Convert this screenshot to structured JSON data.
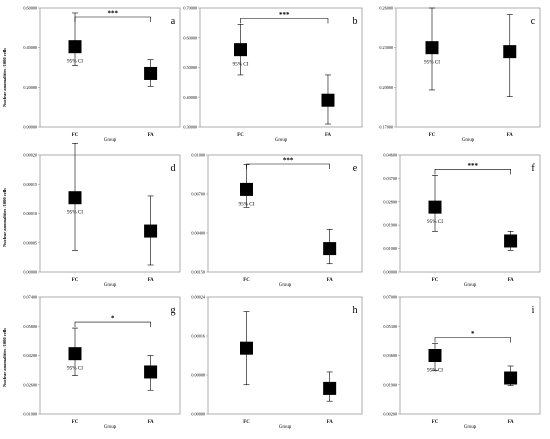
{
  "figure": {
    "background": "#ffffff",
    "marker_color": "#000000",
    "frame_color": "#999999"
  },
  "chart_data": [
    {
      "panel": "a",
      "type": "scatter",
      "ylabel": "Nuclear anomalities /1000 cells",
      "xlabel": "Group",
      "categories": [
        "FC",
        "FA"
      ],
      "ylim": [
        0,
        0.6
      ],
      "yticks": [
        "0.00000",
        "0.20000",
        "0.40000",
        "0.60000"
      ],
      "series": [
        {
          "values": [
            0.405,
            0.27
          ],
          "ci_low": [
            0.31,
            0.205
          ],
          "ci_high": [
            0.575,
            0.34
          ]
        }
      ],
      "significance": "***",
      "ci_label": "95% CI"
    },
    {
      "panel": "b",
      "type": "scatter",
      "ylabel": "",
      "xlabel": "Group",
      "categories": [
        "FC",
        "FA"
      ],
      "ylim": [
        0.3,
        0.7
      ],
      "yticks": [
        "0.30000",
        "0.40000",
        "0.50000",
        "0.60000",
        "0.70000"
      ],
      "series": [
        {
          "values": [
            0.56,
            0.39
          ],
          "ci_low": [
            0.475,
            0.31
          ],
          "ci_high": [
            0.645,
            0.475
          ]
        }
      ],
      "significance": "***",
      "ci_label": "95% CI"
    },
    {
      "panel": "c",
      "type": "scatter",
      "ylabel": "",
      "xlabel": "Group",
      "categories": [
        "FC",
        "FA"
      ],
      "ylim": [
        0.17,
        0.26
      ],
      "yticks": [
        "0.17000",
        "0.20000",
        "0.23000",
        "0.26000"
      ],
      "series": [
        {
          "values": [
            0.23,
            0.227
          ],
          "ci_low": [
            0.198,
            0.193
          ],
          "ci_high": [
            0.26,
            0.255
          ]
        }
      ],
      "significance": "",
      "ci_label": "95% CI"
    },
    {
      "panel": "d",
      "type": "scatter",
      "ylabel": "Nuclear anomalities /1000 cells",
      "xlabel": "Group",
      "categories": [
        "FC",
        "FA"
      ],
      "ylim": [
        0,
        0.0002
      ],
      "yticks": [
        "0.00000",
        "0.00005",
        "0.00010",
        "0.00015",
        "0.00020"
      ],
      "series": [
        {
          "values": [
            0.000127,
            7e-05
          ],
          "ci_low": [
            3.7e-05,
            1.2e-05
          ],
          "ci_high": [
            0.00022,
            0.00013
          ]
        }
      ],
      "significance": "",
      "ci_label": "95% CI"
    },
    {
      "panel": "e",
      "type": "scatter",
      "ylabel": "",
      "xlabel": "Group",
      "categories": [
        "FC",
        "FA"
      ],
      "ylim": [
        0.0015,
        0.01
      ],
      "yticks": [
        "0.00150",
        "0.00400",
        "0.00700",
        "0.01000"
      ],
      "series": [
        {
          "values": [
            0.0075,
            0.0032
          ],
          "ci_low": [
            0.0062,
            0.0021
          ],
          "ci_high": [
            0.0093,
            0.0046
          ]
        }
      ],
      "significance": "***",
      "ci_label": "95% CI"
    },
    {
      "panel": "f",
      "type": "scatter",
      "ylabel": "",
      "xlabel": "Group",
      "categories": [
        "FC",
        "FA"
      ],
      "ylim": [
        0,
        0.046
      ],
      "yticks": [
        "0.00000",
        "0.01000",
        "0.01900",
        "0.02800",
        "0.03700",
        "0.04600"
      ],
      "series": [
        {
          "values": [
            0.0255,
            0.0122
          ],
          "ci_low": [
            0.016,
            0.0085
          ],
          "ci_high": [
            0.038,
            0.016
          ]
        }
      ],
      "significance": "***",
      "ci_label": "95% CI"
    },
    {
      "panel": "g",
      "type": "scatter",
      "ylabel": "Nuclear anomalities /1000 cells",
      "xlabel": "Group",
      "categories": [
        "FC",
        "FA"
      ],
      "ylim": [
        0.01,
        0.074
      ],
      "yticks": [
        "0.01000",
        "0.02600",
        "0.04200",
        "0.05800",
        "0.07400"
      ],
      "series": [
        {
          "values": [
            0.043,
            0.033
          ],
          "ci_low": [
            0.031,
            0.023
          ],
          "ci_high": [
            0.057,
            0.042
          ]
        }
      ],
      "significance": "*",
      "ci_label": "95% CI"
    },
    {
      "panel": "h",
      "type": "scatter",
      "ylabel": "",
      "xlabel": "Group",
      "categories": [
        "FC",
        "FA"
      ],
      "ylim": [
        0,
        0.00032
      ],
      "yticks": [
        "0.00000",
        "0.00008",
        "0.00016",
        "0.00024"
      ],
      "series": [
        {
          "values": [
            0.00018,
            7e-05
          ],
          "ci_low": [
            8e-05,
            3.5e-05
          ],
          "ci_high": [
            0.00028,
            0.000115
          ]
        }
      ],
      "significance": "",
      "ci_label": ""
    },
    {
      "panel": "i",
      "type": "scatter",
      "ylabel": "",
      "xlabel": "Group",
      "categories": [
        "FC",
        "FA"
      ],
      "ylim": [
        0.002,
        0.08
      ],
      "yticks": [
        "0.00200",
        "0.01900",
        "0.03600",
        "0.05300",
        "0.07000"
      ],
      "series": [
        {
          "values": [
            0.041,
            0.026
          ],
          "ci_low": [
            0.031,
            0.021
          ],
          "ci_high": [
            0.049,
            0.034
          ]
        }
      ],
      "significance": "*",
      "ci_label": "95% CI"
    }
  ]
}
